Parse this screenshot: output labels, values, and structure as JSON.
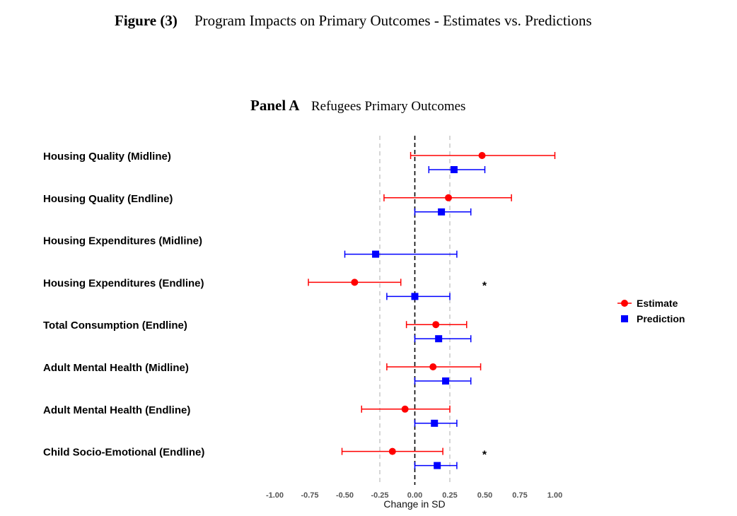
{
  "figure_label": "Figure (3)",
  "figure_title": "Program Impacts on Primary Outcomes - Estimates vs. Predictions",
  "panel_label": "Panel A",
  "panel_title": "Refugees Primary Outcomes",
  "chart_data": {
    "type": "scatter",
    "subtype": "forest-plot",
    "xlabel": "Change in SD",
    "xlim": [
      -1.0,
      1.0
    ],
    "xticks": [
      "-1.00",
      "-0.75",
      "-0.50",
      "-0.25",
      "0.00",
      "0.25",
      "0.50",
      "0.75",
      "1.00"
    ],
    "reference_lines": [
      {
        "x": 0,
        "style": "dashed-black"
      },
      {
        "x": -0.25,
        "style": "dashed-gray"
      },
      {
        "x": 0.25,
        "style": "dashed-gray"
      }
    ],
    "legend": {
      "placement": "right",
      "entries": [
        {
          "name": "Estimate",
          "color": "#ff0000",
          "marker": "circle"
        },
        {
          "name": "Prediction",
          "color": "#0000ff",
          "marker": "square"
        }
      ]
    },
    "outcomes": [
      {
        "label": "Housing Quality (Midline)",
        "estimate": {
          "value": 0.48,
          "lo": -0.03,
          "hi": 1.0
        },
        "prediction": {
          "value": 0.28,
          "lo": 0.1,
          "hi": 0.5
        },
        "significance": ""
      },
      {
        "label": "Housing Quality (Endline)",
        "estimate": {
          "value": 0.24,
          "lo": -0.22,
          "hi": 0.69
        },
        "prediction": {
          "value": 0.19,
          "lo": 0.0,
          "hi": 0.4
        },
        "significance": ""
      },
      {
        "label": "Housing Expenditures (Midline)",
        "estimate": null,
        "prediction": {
          "value": -0.28,
          "lo": -0.5,
          "hi": 0.3
        },
        "significance": ""
      },
      {
        "label": "Housing Expenditures (Endline)",
        "estimate": {
          "value": -0.43,
          "lo": -0.76,
          "hi": -0.1
        },
        "prediction": {
          "value": 0.0,
          "lo": -0.2,
          "hi": 0.25
        },
        "significance": "*"
      },
      {
        "label": "Total Consumption (Endline)",
        "estimate": {
          "value": 0.15,
          "lo": -0.06,
          "hi": 0.37
        },
        "prediction": {
          "value": 0.17,
          "lo": 0.0,
          "hi": 0.4
        },
        "significance": ""
      },
      {
        "label": "Adult Mental Health (Midline)",
        "estimate": {
          "value": 0.13,
          "lo": -0.2,
          "hi": 0.47
        },
        "prediction": {
          "value": 0.22,
          "lo": 0.0,
          "hi": 0.4
        },
        "significance": ""
      },
      {
        "label": "Adult Mental Health (Endline)",
        "estimate": {
          "value": -0.07,
          "lo": -0.38,
          "hi": 0.25
        },
        "prediction": {
          "value": 0.14,
          "lo": 0.0,
          "hi": 0.3
        },
        "significance": ""
      },
      {
        "label": "Child Socio-Emotional (Endline)",
        "estimate": {
          "value": -0.16,
          "lo": -0.52,
          "hi": 0.2
        },
        "prediction": {
          "value": 0.16,
          "lo": 0.0,
          "hi": 0.3
        },
        "significance": "*"
      }
    ]
  }
}
